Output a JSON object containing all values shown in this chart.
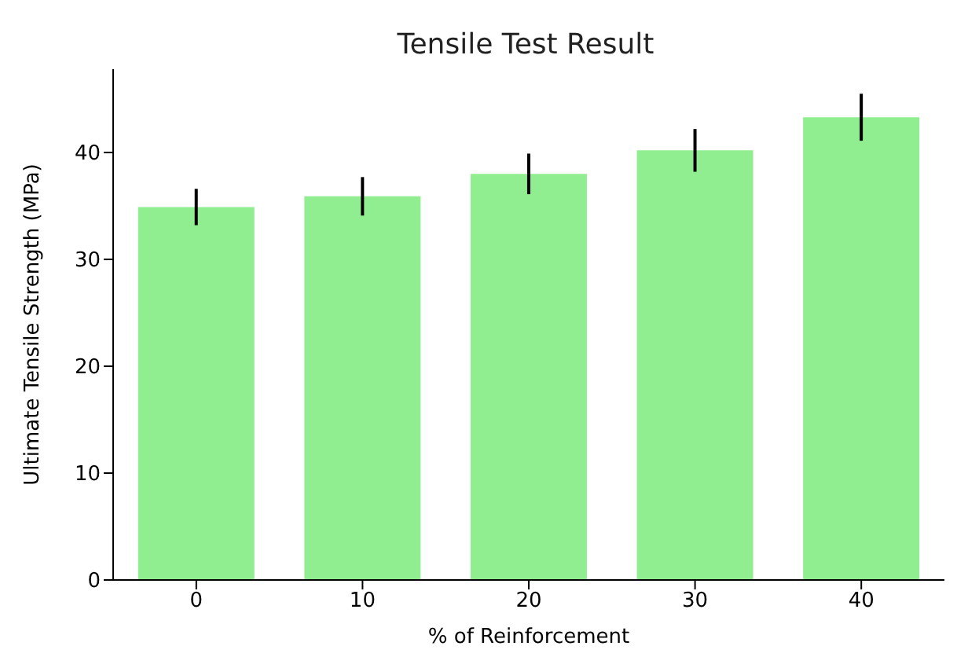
{
  "chart_data": {
    "type": "bar",
    "title": "Tensile Test Result",
    "xlabel": "% of Reinforcement",
    "ylabel": "Ultimate Tensile Strength (MPa)",
    "categories": [
      "0",
      "10",
      "20",
      "30",
      "40"
    ],
    "values": [
      34.9,
      35.9,
      38.0,
      40.2,
      43.3
    ],
    "errors": [
      1.7,
      1.8,
      1.9,
      2.0,
      2.2
    ],
    "color": "#90ee90",
    "ylim": [
      0,
      47.8
    ],
    "yticks": [
      0,
      10,
      20,
      30,
      40
    ],
    "grid": false,
    "legend": false
  }
}
